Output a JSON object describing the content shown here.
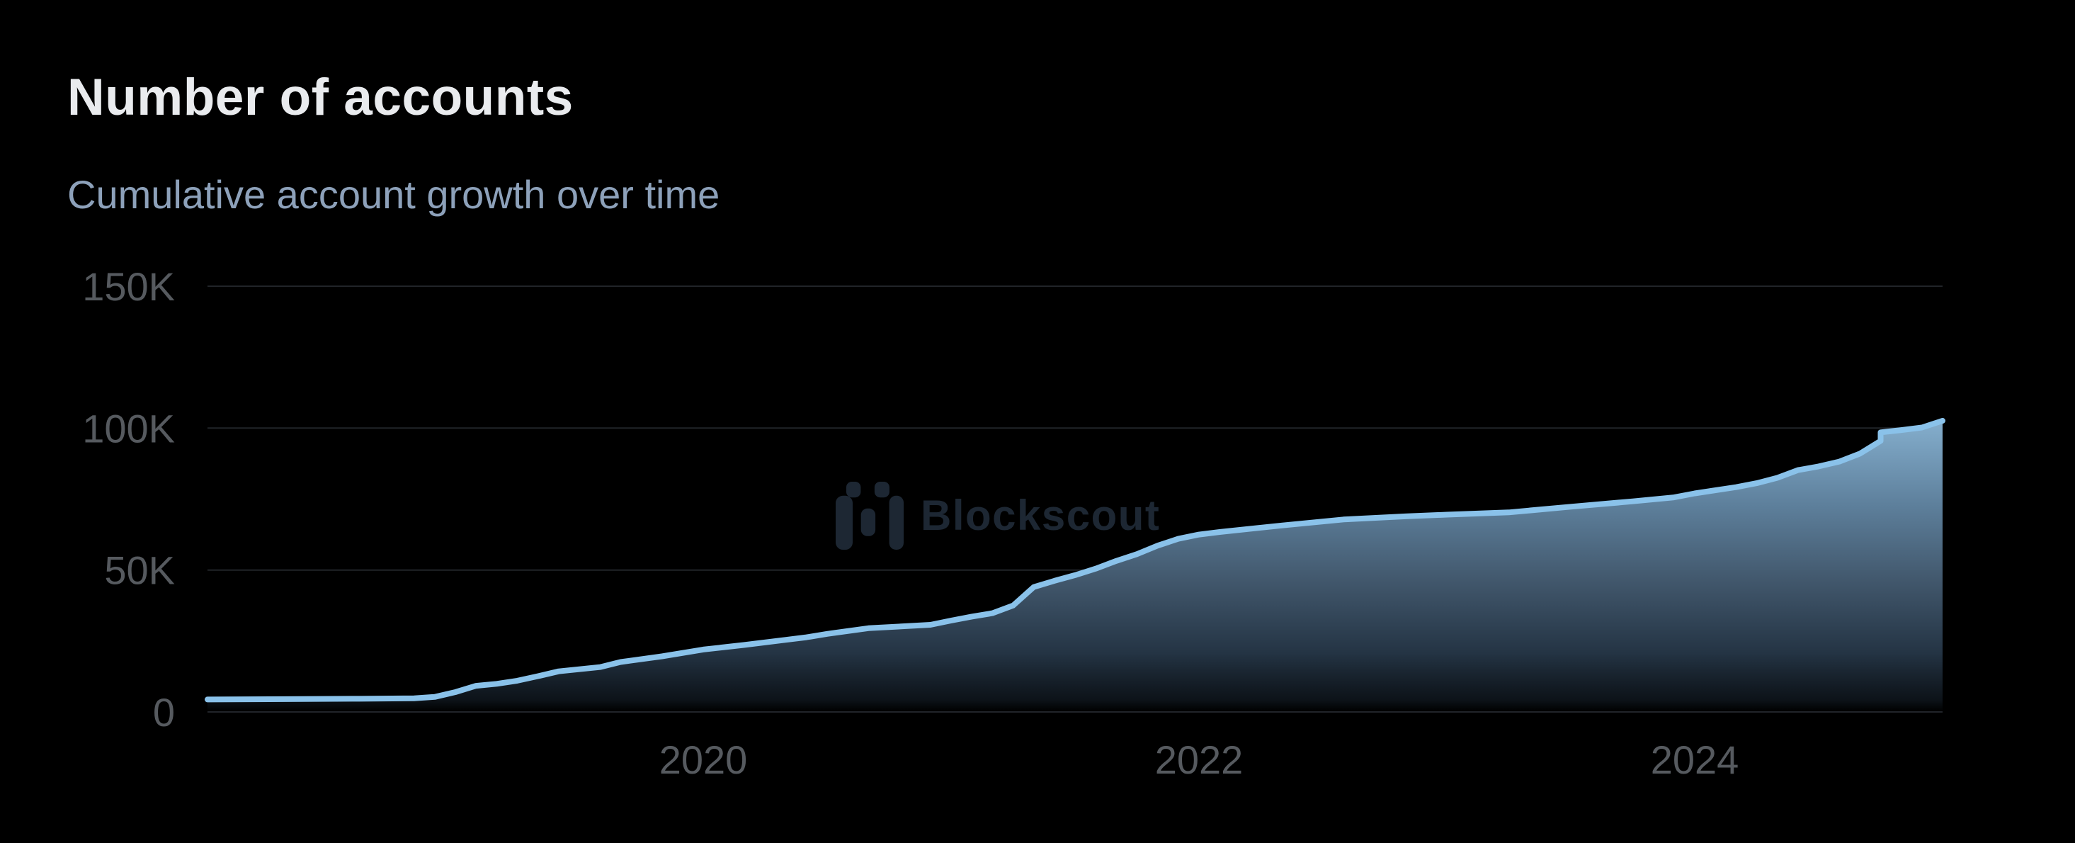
{
  "header": {
    "title": "Number of accounts",
    "subtitle": "Cumulative account growth over time"
  },
  "watermark": {
    "label": "Blockscout"
  },
  "colors": {
    "background": "#000000",
    "title": "#e9ebee",
    "subtitle": "#8da1ba",
    "axis_label": "#565a5f",
    "gridline": "#212429",
    "line": "#8ac2ea",
    "watermark": "#1d2733",
    "area_gradient": [
      [
        "0%",
        "#86b0cf",
        "1"
      ],
      [
        "30%",
        "#5d7f9b",
        "1"
      ],
      [
        "55%",
        "#42586d",
        "1"
      ],
      [
        "80%",
        "#243444",
        "1"
      ],
      [
        "96%",
        "#0f161d",
        "0.85"
      ],
      [
        "100%",
        "#0c1319",
        "0"
      ]
    ]
  },
  "chart_data": {
    "type": "area",
    "title": "Number of accounts",
    "subtitle": "Cumulative account growth over time",
    "watermark": "Blockscout",
    "grid": true,
    "legend": false,
    "x_axis": {
      "range": [
        "2018-01",
        "2025-01"
      ],
      "tick_labels": [
        "2020",
        "2022",
        "2024"
      ],
      "tick_positions": [
        "2020-01",
        "2022-01",
        "2024-01"
      ]
    },
    "y_axis": {
      "min": 0,
      "max": 150000,
      "tick_values": [
        0,
        50000,
        100000,
        150000
      ],
      "tick_labels": [
        "0",
        "50K",
        "100K",
        "150K"
      ]
    },
    "series": [
      {
        "name": "Number of accounts",
        "points": [
          [
            "2018-01",
            4400
          ],
          [
            "2018-04",
            4500
          ],
          [
            "2018-08",
            4650
          ],
          [
            "2018-11",
            4800
          ],
          [
            "2018-12",
            5300
          ],
          [
            "2019-01",
            7000
          ],
          [
            "2019-02",
            9200
          ],
          [
            "2019-03",
            9900
          ],
          [
            "2019-04",
            11000
          ],
          [
            "2019-05",
            12600
          ],
          [
            "2019-06",
            14300
          ],
          [
            "2019-08",
            15800
          ],
          [
            "2019-09",
            17600
          ],
          [
            "2019-11",
            19600
          ],
          [
            "2020-01",
            22000
          ],
          [
            "2020-03",
            23600
          ],
          [
            "2020-05",
            25400
          ],
          [
            "2020-06",
            26300
          ],
          [
            "2020-07",
            27500
          ],
          [
            "2020-09",
            29500
          ],
          [
            "2020-12",
            30700
          ],
          [
            "2021-01",
            32200
          ],
          [
            "2021-02",
            33600
          ],
          [
            "2021-03",
            34800
          ],
          [
            "2021-04",
            37500
          ],
          [
            "2021-05",
            44000
          ],
          [
            "2021-06",
            46200
          ],
          [
            "2021-07",
            48200
          ],
          [
            "2021-08",
            50500
          ],
          [
            "2021-09",
            53200
          ],
          [
            "2021-10",
            55600
          ],
          [
            "2021-11",
            58600
          ],
          [
            "2021-12",
            61000
          ],
          [
            "2022-01",
            62500
          ],
          [
            "2022-02",
            63400
          ],
          [
            "2022-05",
            65700
          ],
          [
            "2022-08",
            67800
          ],
          [
            "2022-11",
            68900
          ],
          [
            "2023-01",
            69500
          ],
          [
            "2023-04",
            70300
          ],
          [
            "2023-07",
            72300
          ],
          [
            "2023-10",
            74200
          ],
          [
            "2023-12",
            75600
          ],
          [
            "2024-01",
            77000
          ],
          [
            "2024-03",
            79200
          ],
          [
            "2024-04",
            80600
          ],
          [
            "2024-05",
            82500
          ],
          [
            "2024-06",
            85200
          ],
          [
            "2024-07",
            86500
          ],
          [
            "2024-08",
            88200
          ],
          [
            "2024-09",
            91000
          ],
          [
            "2024-10",
            95500
          ],
          [
            "2024-10",
            98500
          ],
          [
            "2024-11",
            99300
          ],
          [
            "2024-12",
            100200
          ],
          [
            "2025-01",
            102600
          ]
        ]
      }
    ]
  }
}
